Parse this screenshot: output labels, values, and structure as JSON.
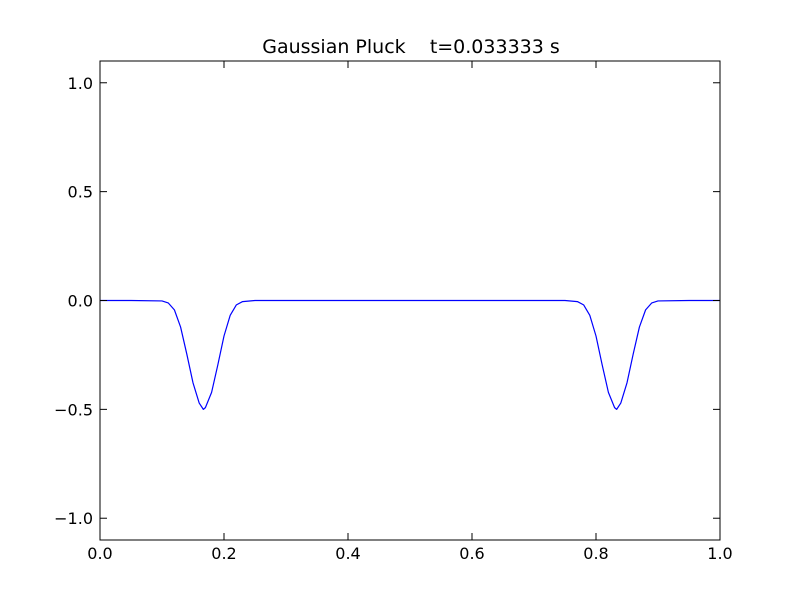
{
  "chart_data": {
    "type": "line",
    "title": "Gaussian Pluck    t=0.033333 s",
    "xlabel": "",
    "ylabel": "",
    "xlim": [
      0.0,
      1.0
    ],
    "ylim": [
      -1.1,
      1.1
    ],
    "grid": false,
    "legend": "none",
    "x_ticks": [
      0.0,
      0.2,
      0.4,
      0.6,
      0.8,
      1.0
    ],
    "x_tick_labels": [
      "0.0",
      "0.2",
      "0.4",
      "0.6",
      "0.8",
      "1.0"
    ],
    "y_ticks": [
      1.0,
      0.5,
      0.0,
      -0.5,
      -1.0
    ],
    "y_tick_labels": [
      "1.0",
      "0.5",
      "0.0",
      "−0.5",
      "−1.0"
    ],
    "series": [
      {
        "color": "#0000ff",
        "x": [
          0.0,
          0.05,
          0.1,
          0.11,
          0.12,
          0.13,
          0.14,
          0.15,
          0.16,
          0.1667,
          0.17,
          0.18,
          0.19,
          0.2,
          0.21,
          0.22,
          0.23,
          0.25,
          0.3,
          0.4,
          0.5,
          0.6,
          0.7,
          0.75,
          0.77,
          0.78,
          0.79,
          0.8,
          0.81,
          0.82,
          0.83,
          0.8333,
          0.84,
          0.85,
          0.86,
          0.87,
          0.88,
          0.89,
          0.9,
          0.95,
          1.0
        ],
        "y": [
          0.0,
          0.0,
          -0.002,
          -0.011,
          -0.043,
          -0.122,
          -0.246,
          -0.378,
          -0.471,
          -0.5,
          -0.492,
          -0.422,
          -0.296,
          -0.163,
          -0.068,
          -0.02,
          -0.005,
          0.0,
          0.0,
          0.0,
          0.0,
          0.0,
          0.0,
          0.0,
          -0.005,
          -0.02,
          -0.068,
          -0.163,
          -0.296,
          -0.422,
          -0.492,
          -0.5,
          -0.471,
          -0.378,
          -0.246,
          -0.122,
          -0.043,
          -0.011,
          -0.002,
          0.0,
          0.0
        ]
      }
    ]
  }
}
